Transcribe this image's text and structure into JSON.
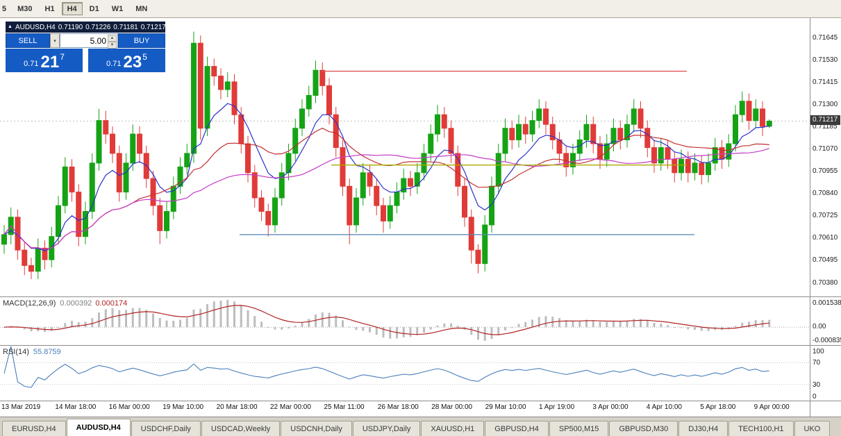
{
  "toolbar": {
    "timeframe_buttons": [
      "5",
      "M30",
      "H1",
      "H4",
      "D1",
      "W1",
      "MN"
    ],
    "active_timeframe": "H4"
  },
  "trade_panel": {
    "symbol_title": "AUDUSD,H4",
    "open": "0.71190",
    "high": "0.71226",
    "low": "0.71181",
    "close": "0.71217",
    "sell_label": "SELL",
    "buy_label": "BUY",
    "volume": "5.00",
    "bid_prefix": "0.71",
    "bid_big": "21",
    "bid_sup": "7",
    "ask_prefix": "0.71",
    "ask_big": "23",
    "ask_sup": "5",
    "accent_color": "#155BC4"
  },
  "price_axis": {
    "ticks": [
      "0.71645",
      "0.71530",
      "0.71415",
      "0.71300",
      "0.71185",
      "0.71070",
      "0.70955",
      "0.70840",
      "0.70725",
      "0.70610",
      "0.70495",
      "0.70380"
    ],
    "current": "0.71217"
  },
  "macd_panel": {
    "label": "MACD(12,26,9)",
    "value_main": "0.000392",
    "value_signal": "0.000174",
    "axis": [
      "0.001538",
      "0.00",
      "-0.000835"
    ]
  },
  "rsi_panel": {
    "label": "RSI(14)",
    "value": "55.8759",
    "axis": [
      "100",
      "70",
      "30",
      "0"
    ]
  },
  "time_axis": [
    "13 Mar 2019",
    "14 Mar 18:00",
    "16 Mar 00:00",
    "19 Mar 10:00",
    "20 Mar 18:00",
    "22 Mar 00:00",
    "25 Mar 11:00",
    "26 Mar 18:00",
    "28 Mar 00:00",
    "29 Mar 10:00",
    "1 Apr 19:00",
    "3 Apr 00:00",
    "4 Apr 10:00",
    "5 Apr 18:00",
    "9 Apr 00:00"
  ],
  "tabs": {
    "items": [
      "EURUSD,H4",
      "AUDUSD,H4",
      "USDCHF,Daily",
      "USDCAD,Weekly",
      "USDCNH,Daily",
      "USDJPY,Daily",
      "XAUUSD,H1",
      "GBPUSD,H4",
      "SP500,M15",
      "GBPUSD,M30",
      "DJ30,H4",
      "TECH100,H1",
      "UKO"
    ],
    "active": "AUDUSD,H4"
  },
  "chart_data": {
    "type": "candlestick",
    "symbol": "AUDUSD",
    "timeframe": "H4",
    "ohlc_current": {
      "open": 0.7119,
      "high": 0.71226,
      "low": 0.71181,
      "close": 0.71217
    },
    "y_range": [
      0.7031,
      0.7175
    ],
    "up_color": "#15A315",
    "down_color": "#E03B38",
    "x_labels": [
      "13 Mar 2019",
      "14 Mar 18:00",
      "16 Mar 00:00",
      "19 Mar 10:00",
      "20 Mar 18:00",
      "22 Mar 00:00",
      "25 Mar 11:00",
      "26 Mar 18:00",
      "28 Mar 00:00",
      "29 Mar 10:00",
      "1 Apr 19:00",
      "3 Apr 00:00",
      "4 Apr 10:00",
      "5 Apr 18:00",
      "9 Apr 00:00"
    ],
    "candles": [
      [
        0.7058,
        0.7068,
        0.7053,
        0.7063
      ],
      [
        0.7063,
        0.7077,
        0.7058,
        0.7072
      ],
      [
        0.7072,
        0.7076,
        0.705,
        0.7055
      ],
      [
        0.7055,
        0.7059,
        0.7042,
        0.7047
      ],
      [
        0.7047,
        0.7051,
        0.704,
        0.7044
      ],
      [
        0.7044,
        0.7061,
        0.704,
        0.7056
      ],
      [
        0.7056,
        0.706,
        0.7045,
        0.705
      ],
      [
        0.705,
        0.7067,
        0.7046,
        0.7062
      ],
      [
        0.7062,
        0.7083,
        0.7058,
        0.7078
      ],
      [
        0.7078,
        0.7103,
        0.7074,
        0.7098
      ],
      [
        0.7098,
        0.7102,
        0.708,
        0.7085
      ],
      [
        0.7085,
        0.7089,
        0.7057,
        0.7062
      ],
      [
        0.7062,
        0.708,
        0.7058,
        0.7075
      ],
      [
        0.7075,
        0.7105,
        0.7071,
        0.71
      ],
      [
        0.71,
        0.7128,
        0.7096,
        0.7122
      ],
      [
        0.7122,
        0.7127,
        0.711,
        0.7115
      ],
      [
        0.7115,
        0.7119,
        0.71,
        0.7105
      ],
      [
        0.7105,
        0.7109,
        0.708,
        0.7085
      ],
      [
        0.7085,
        0.7105,
        0.7081,
        0.71
      ],
      [
        0.71,
        0.712,
        0.7096,
        0.7115
      ],
      [
        0.7115,
        0.7119,
        0.71,
        0.7105
      ],
      [
        0.7105,
        0.7109,
        0.7087,
        0.7092
      ],
      [
        0.7092,
        0.7096,
        0.7073,
        0.7078
      ],
      [
        0.7078,
        0.7082,
        0.7058,
        0.7065
      ],
      [
        0.7065,
        0.708,
        0.7061,
        0.7075
      ],
      [
        0.7075,
        0.7093,
        0.7071,
        0.7088
      ],
      [
        0.7088,
        0.7103,
        0.7084,
        0.7098
      ],
      [
        0.7098,
        0.711,
        0.7094,
        0.7105
      ],
      [
        0.7105,
        0.7168,
        0.71,
        0.7162
      ],
      [
        0.7162,
        0.7166,
        0.7112,
        0.7118
      ],
      [
        0.7118,
        0.7155,
        0.7114,
        0.715
      ],
      [
        0.715,
        0.7154,
        0.714,
        0.7145
      ],
      [
        0.7145,
        0.7149,
        0.7133,
        0.7138
      ],
      [
        0.7138,
        0.7147,
        0.7134,
        0.7142
      ],
      [
        0.7142,
        0.7146,
        0.712,
        0.7125
      ],
      [
        0.7125,
        0.7129,
        0.7105,
        0.711
      ],
      [
        0.711,
        0.7114,
        0.709,
        0.7095
      ],
      [
        0.7095,
        0.7099,
        0.7077,
        0.7082
      ],
      [
        0.7082,
        0.7086,
        0.707,
        0.7075
      ],
      [
        0.7075,
        0.7079,
        0.7062,
        0.7068
      ],
      [
        0.7068,
        0.7087,
        0.7064,
        0.7082
      ],
      [
        0.7082,
        0.71,
        0.7078,
        0.7095
      ],
      [
        0.7095,
        0.711,
        0.7091,
        0.7105
      ],
      [
        0.7105,
        0.7123,
        0.7101,
        0.7118
      ],
      [
        0.7118,
        0.7133,
        0.7114,
        0.7128
      ],
      [
        0.7128,
        0.714,
        0.7124,
        0.7135
      ],
      [
        0.7135,
        0.7153,
        0.7131,
        0.7148
      ],
      [
        0.7148,
        0.7152,
        0.7135,
        0.714
      ],
      [
        0.714,
        0.7144,
        0.712,
        0.7125
      ],
      [
        0.7125,
        0.7129,
        0.7103,
        0.7108
      ],
      [
        0.7108,
        0.7112,
        0.7083,
        0.7088
      ],
      [
        0.7088,
        0.7092,
        0.7058,
        0.7068
      ],
      [
        0.7068,
        0.7087,
        0.7064,
        0.7082
      ],
      [
        0.7082,
        0.71,
        0.7078,
        0.7095
      ],
      [
        0.7095,
        0.7099,
        0.7083,
        0.7088
      ],
      [
        0.7088,
        0.7092,
        0.7073,
        0.7078
      ],
      [
        0.7078,
        0.7082,
        0.7064,
        0.707
      ],
      [
        0.707,
        0.7083,
        0.7066,
        0.7078
      ],
      [
        0.7078,
        0.709,
        0.7074,
        0.7085
      ],
      [
        0.7085,
        0.7097,
        0.7081,
        0.7092
      ],
      [
        0.7092,
        0.7096,
        0.7083,
        0.7088
      ],
      [
        0.7088,
        0.71,
        0.7084,
        0.7095
      ],
      [
        0.7095,
        0.711,
        0.7091,
        0.7105
      ],
      [
        0.7105,
        0.712,
        0.7101,
        0.7115
      ],
      [
        0.7115,
        0.713,
        0.7111,
        0.7125
      ],
      [
        0.7125,
        0.7129,
        0.7113,
        0.7118
      ],
      [
        0.7118,
        0.7122,
        0.71,
        0.7105
      ],
      [
        0.7105,
        0.7109,
        0.7083,
        0.7088
      ],
      [
        0.7088,
        0.7092,
        0.7067,
        0.7072
      ],
      [
        0.7072,
        0.7076,
        0.7048,
        0.7055
      ],
      [
        0.7055,
        0.7058,
        0.7043,
        0.7048
      ],
      [
        0.7048,
        0.7073,
        0.7044,
        0.7068
      ],
      [
        0.7068,
        0.7093,
        0.7064,
        0.7088
      ],
      [
        0.7088,
        0.711,
        0.7084,
        0.7105
      ],
      [
        0.7105,
        0.7123,
        0.7101,
        0.7118
      ],
      [
        0.7118,
        0.7122,
        0.7107,
        0.7112
      ],
      [
        0.7112,
        0.7125,
        0.7108,
        0.712
      ],
      [
        0.712,
        0.7124,
        0.711,
        0.7115
      ],
      [
        0.7115,
        0.7127,
        0.7111,
        0.7122
      ],
      [
        0.7122,
        0.7133,
        0.7118,
        0.7128
      ],
      [
        0.7128,
        0.7132,
        0.7115,
        0.712
      ],
      [
        0.712,
        0.7124,
        0.7107,
        0.7112
      ],
      [
        0.7112,
        0.7116,
        0.71,
        0.7105
      ],
      [
        0.7105,
        0.7109,
        0.7093,
        0.7098
      ],
      [
        0.7098,
        0.711,
        0.7094,
        0.7105
      ],
      [
        0.7105,
        0.7117,
        0.7101,
        0.7112
      ],
      [
        0.7112,
        0.7125,
        0.7108,
        0.712
      ],
      [
        0.712,
        0.7124,
        0.7105,
        0.711
      ],
      [
        0.711,
        0.7114,
        0.7097,
        0.7102
      ],
      [
        0.7102,
        0.7115,
        0.7098,
        0.711
      ],
      [
        0.711,
        0.7123,
        0.7106,
        0.7118
      ],
      [
        0.7118,
        0.7122,
        0.7107,
        0.7112
      ],
      [
        0.7112,
        0.7125,
        0.7108,
        0.712
      ],
      [
        0.712,
        0.7133,
        0.7116,
        0.7128
      ],
      [
        0.7128,
        0.7132,
        0.7113,
        0.7118
      ],
      [
        0.7118,
        0.7122,
        0.7103,
        0.7108
      ],
      [
        0.7108,
        0.7112,
        0.7095,
        0.71
      ],
      [
        0.71,
        0.7113,
        0.7096,
        0.7108
      ],
      [
        0.7108,
        0.7112,
        0.7097,
        0.7102
      ],
      [
        0.7102,
        0.7106,
        0.709,
        0.7095
      ],
      [
        0.7095,
        0.7107,
        0.7091,
        0.7102
      ],
      [
        0.7102,
        0.7106,
        0.709,
        0.7095
      ],
      [
        0.7095,
        0.7105,
        0.7091,
        0.71
      ],
      [
        0.71,
        0.7104,
        0.7089,
        0.7094
      ],
      [
        0.7094,
        0.7105,
        0.709,
        0.71
      ],
      [
        0.71,
        0.7113,
        0.7096,
        0.7108
      ],
      [
        0.7108,
        0.7112,
        0.7097,
        0.7102
      ],
      [
        0.7102,
        0.7115,
        0.7098,
        0.711
      ],
      [
        0.711,
        0.713,
        0.7106,
        0.7125
      ],
      [
        0.7125,
        0.7137,
        0.7121,
        0.7132
      ],
      [
        0.7132,
        0.7136,
        0.7117,
        0.7122
      ],
      [
        0.7122,
        0.7133,
        0.7118,
        0.7128
      ],
      [
        0.7128,
        0.7132,
        0.7114,
        0.7119
      ],
      [
        0.7119,
        0.71226,
        0.71181,
        0.71217
      ]
    ],
    "overlays": [
      {
        "name": "ma-fast",
        "type": "ema",
        "period": 8,
        "color": "#2B31C8"
      },
      {
        "name": "ma-mid",
        "type": "sma",
        "period": 20,
        "color": "#C03030"
      },
      {
        "name": "ma-slow",
        "type": "sma",
        "period": 45,
        "color": "#C53BC5"
      }
    ],
    "hlines": [
      {
        "name": "resistance-line",
        "price": 0.71475,
        "color": "#E05555",
        "x1": 0.397,
        "x2": 0.848
      },
      {
        "name": "pivot-line",
        "price": 0.7099,
        "color": "#AAAA00",
        "x1": 0.409,
        "x2": 0.848
      },
      {
        "name": "support-line",
        "price": 0.7063,
        "color": "#5B8DB8",
        "x1": 0.296,
        "x2": 0.858
      }
    ],
    "indicators": [
      {
        "name": "MACD",
        "params": [
          12,
          26,
          9
        ],
        "histogram_color": "#BDBDBD",
        "signal_color": "#B22222",
        "y_range": [
          -0.0011,
          0.0018
        ],
        "value_main": 0.000392,
        "value_signal": 0.000174
      },
      {
        "name": "RSI",
        "params": [
          14
        ],
        "color": "#4A7EBB",
        "levels": [
          70,
          30
        ],
        "y_range": [
          0,
          100
        ],
        "value": 55.8759
      }
    ]
  }
}
